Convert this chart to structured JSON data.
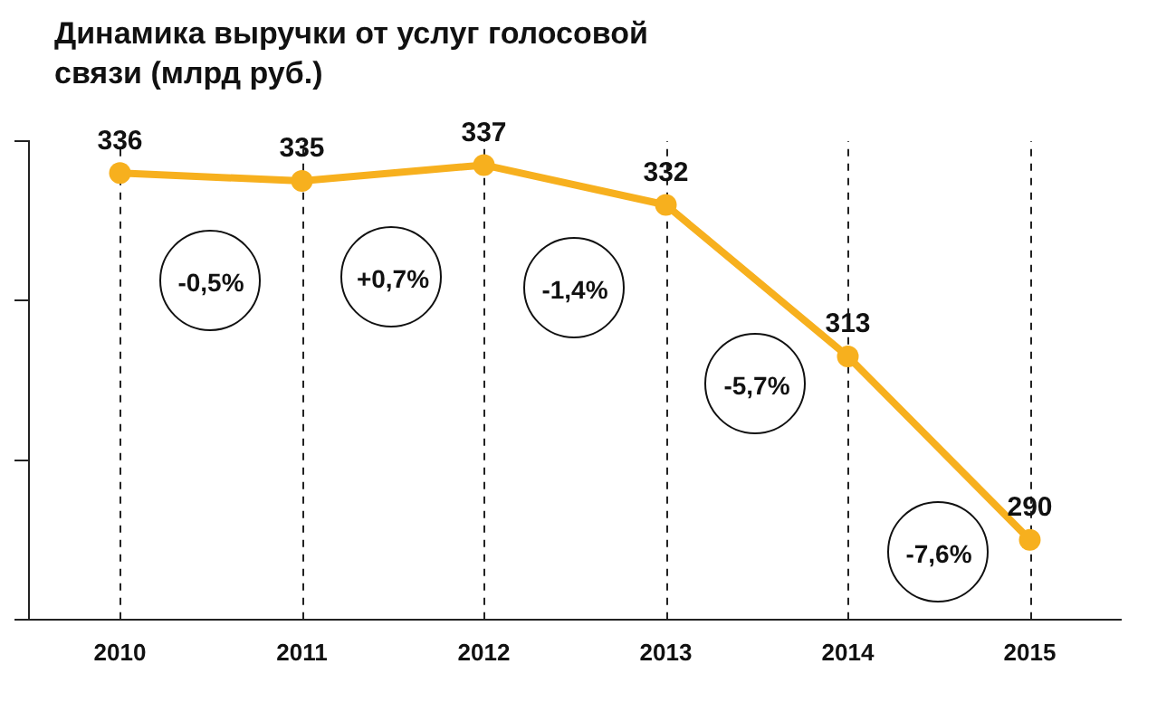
{
  "chart_data": {
    "type": "line",
    "title": "Динамика выручки от услуг голосовой связи (млрд руб.)",
    "categories": [
      "2010",
      "2011",
      "2012",
      "2013",
      "2014",
      "2015"
    ],
    "series": [
      {
        "color": "#f7b01e",
        "values": [
          336,
          335,
          337,
          332,
          313,
          290
        ]
      }
    ],
    "ylim": [
      280,
      340
    ],
    "yticks": [
      {
        "value": 280,
        "label": null
      },
      {
        "value": 300,
        "label": null
      },
      {
        "value": 320,
        "label": null
      },
      {
        "value": 340,
        "label": null
      }
    ],
    "tick_labels": "x",
    "grid": "x",
    "marker": "circle",
    "line_style": "solid",
    "data_labels": true,
    "legend": false,
    "annotations": [
      "-0,5%",
      "+0,7%",
      "-1,4%",
      "-5,7%",
      "-7,6%"
    ]
  }
}
